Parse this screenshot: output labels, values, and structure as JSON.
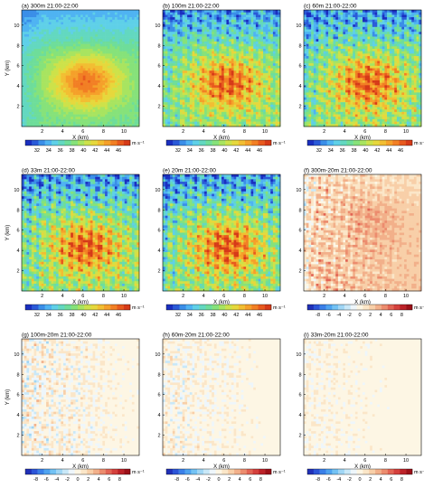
{
  "figure": {
    "panels": [
      {
        "id": "a",
        "title": "(a) 300m 21:00-22:00",
        "kind": "wind",
        "show_ylabel": true
      },
      {
        "id": "b",
        "title": "(b) 100m 21:00-22:00",
        "kind": "wind",
        "show_ylabel": false
      },
      {
        "id": "c",
        "title": "(c) 60m 21:00-22:00",
        "kind": "wind",
        "show_ylabel": false
      },
      {
        "id": "d",
        "title": "(d) 33m 21:00-22:00",
        "kind": "wind",
        "show_ylabel": true
      },
      {
        "id": "e",
        "title": "(e) 20m 21:00-22:00",
        "kind": "wind",
        "show_ylabel": false
      },
      {
        "id": "f",
        "title": "(f) 300m-20m 21:00-22:00",
        "kind": "diff",
        "show_ylabel": false
      },
      {
        "id": "g",
        "title": "(g) 100m-20m 21:00-22:00",
        "kind": "diff",
        "show_ylabel": true
      },
      {
        "id": "h",
        "title": "(h) 60m-20m 21:00-22:00",
        "kind": "diff",
        "show_ylabel": false
      },
      {
        "id": "i",
        "title": "(i) 33m-20m 21:00-22:00",
        "kind": "diff",
        "show_ylabel": false
      }
    ]
  },
  "chart_data": {
    "type": "heatmap",
    "xlabel": "X (km)",
    "ylabel": "Y (km)",
    "x_ticks": [
      2,
      4,
      6,
      8,
      10
    ],
    "y_ticks": [
      2,
      4,
      6,
      8,
      10
    ],
    "xlim": [
      0,
      11.5
    ],
    "ylim": [
      0,
      11.5
    ],
    "colorbars": {
      "wind": {
        "unit": "m s⁻¹",
        "labels": [
          "32",
          "34",
          "36",
          "38",
          "40",
          "42",
          "44",
          "46"
        ],
        "colors": [
          "#1a2fc0",
          "#2a5ad8",
          "#3a8ee8",
          "#4fb3f2",
          "#5fd0e8",
          "#63d8c0",
          "#6edd9a",
          "#86e27a",
          "#a8e460",
          "#cde24a",
          "#e6d83c",
          "#f2be32",
          "#f5a02a",
          "#f27f24",
          "#e85a1e",
          "#d63a18"
        ]
      },
      "diff": {
        "unit": "m s⁻¹",
        "labels": [
          "-8",
          "-6",
          "-4",
          "-2",
          "0",
          "2",
          "4",
          "6",
          "8"
        ],
        "colors": [
          "#2030b8",
          "#2c55d8",
          "#3a7fe8",
          "#4fa3f0",
          "#73c2f4",
          "#a0d6f5",
          "#c9e8f8",
          "#eef6fb",
          "#fdf6e4",
          "#fbe6c8",
          "#f8cfa8",
          "#f2b08a",
          "#ec8c6e",
          "#e26454",
          "#d4403c",
          "#bc2228",
          "#9c1018"
        ]
      }
    }
  }
}
